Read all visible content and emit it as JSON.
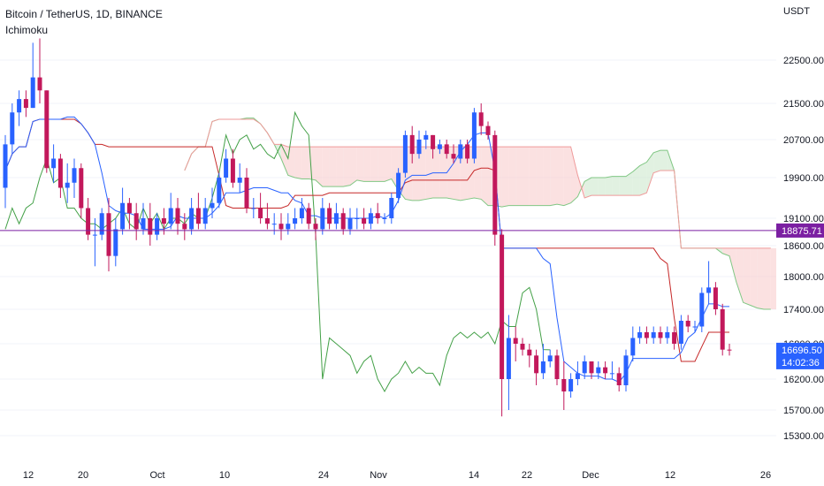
{
  "header": {
    "symbol_line": "Bitcoin / TetherUS, 1D, BINANCE",
    "indicator": "Ichimoku"
  },
  "currency": "USDT",
  "chart_data": {
    "type": "candlestick",
    "title": "Bitcoin / TetherUS, 1D, BINANCE",
    "y_ticks": [
      "22500.00",
      "21500.00",
      "20700.00",
      "19900.00",
      "19100.00",
      "18600.00",
      "18000.00",
      "17400.00",
      "16800.00",
      "16200.00",
      "15700.00",
      "15300.00"
    ],
    "x_ticks": [
      "12",
      "20",
      "Oct",
      "10",
      "24",
      "Nov",
      "14",
      "22",
      "Dec",
      "12",
      "26"
    ],
    "price_lines": [
      {
        "label": "18875.71",
        "color": "#7b1fa2"
      },
      {
        "label": "16696.50",
        "sublabel": "14:02:36",
        "color": "#2962ff"
      }
    ],
    "colors": {
      "up": "#2962ff",
      "down": "#c2185b",
      "conversion": "#2962ff",
      "base": "#c62828",
      "lagging": "#43a047",
      "cloud_bear": "#f8c8c8",
      "cloud_bull": "#c8e6c9"
    },
    "candles": [
      [
        19700,
        20800,
        19300,
        20600
      ],
      [
        20600,
        21500,
        20400,
        21300
      ],
      [
        21300,
        21800,
        21000,
        21600
      ],
      [
        21600,
        21800,
        21200,
        21400
      ],
      [
        21400,
        22900,
        21400,
        22100
      ],
      [
        22100,
        23000,
        21500,
        21800
      ],
      [
        21800,
        21800,
        20000,
        20100
      ],
      [
        20100,
        20600,
        19800,
        20300
      ],
      [
        20300,
        20400,
        19500,
        19700
      ],
      [
        19700,
        20200,
        19400,
        19800
      ],
      [
        19800,
        20300,
        19500,
        20100
      ],
      [
        20100,
        20200,
        19100,
        19300
      ],
      [
        19300,
        19500,
        18700,
        18800
      ],
      [
        18800,
        19100,
        18200,
        18800
      ],
      [
        18800,
        19300,
        18700,
        19200
      ],
      [
        19200,
        19500,
        18100,
        18400
      ],
      [
        18400,
        19100,
        18200,
        18900
      ],
      [
        18900,
        19700,
        18800,
        19400
      ],
      [
        19400,
        19500,
        18900,
        19200
      ],
      [
        19200,
        19400,
        18700,
        18900
      ],
      [
        18900,
        19400,
        18800,
        19100
      ],
      [
        19100,
        19400,
        18600,
        18800
      ],
      [
        18800,
        19200,
        18700,
        19100
      ],
      [
        19100,
        19300,
        18800,
        19000
      ],
      [
        19000,
        19600,
        18900,
        19300
      ],
      [
        19300,
        19500,
        18800,
        19000
      ],
      [
        19000,
        19200,
        18700,
        18900
      ],
      [
        18900,
        19500,
        18800,
        19300
      ],
      [
        19300,
        19600,
        18900,
        19000
      ],
      [
        19000,
        19500,
        18900,
        19300
      ],
      [
        19300,
        19700,
        19100,
        19400
      ],
      [
        19400,
        20000,
        19300,
        19900
      ],
      [
        19900,
        20500,
        19800,
        20300
      ],
      [
        20300,
        20500,
        19700,
        19800
      ],
      [
        19800,
        20200,
        19600,
        19900
      ],
      [
        19900,
        20100,
        19200,
        19300
      ],
      [
        19300,
        19500,
        19100,
        19300
      ],
      [
        19300,
        19600,
        19000,
        19100
      ],
      [
        19100,
        19400,
        18900,
        19000
      ],
      [
        19000,
        19200,
        18800,
        19000
      ],
      [
        19000,
        19200,
        18700,
        18900
      ],
      [
        18900,
        19200,
        18800,
        19000
      ],
      [
        19000,
        19300,
        18900,
        19100
      ],
      [
        19100,
        19500,
        19000,
        19300
      ],
      [
        19300,
        19400,
        18900,
        19000
      ],
      [
        19000,
        19100,
        18700,
        18900
      ],
      [
        18900,
        19500,
        18800,
        19300
      ],
      [
        19300,
        19400,
        18900,
        19000
      ],
      [
        19000,
        19400,
        18900,
        19200
      ],
      [
        19200,
        19300,
        18800,
        18900
      ],
      [
        18900,
        19300,
        18800,
        19100
      ],
      [
        19100,
        19300,
        18900,
        19100
      ],
      [
        19100,
        19300,
        18900,
        19000
      ],
      [
        19000,
        19300,
        18900,
        19200
      ],
      [
        19200,
        19400,
        19000,
        19100
      ],
      [
        19100,
        19200,
        19000,
        19100
      ],
      [
        19100,
        19600,
        19000,
        19500
      ],
      [
        19500,
        20100,
        19400,
        20000
      ],
      [
        20000,
        20900,
        19900,
        20800
      ],
      [
        20800,
        21000,
        20200,
        20400
      ],
      [
        20400,
        20900,
        20300,
        20700
      ],
      [
        20700,
        20900,
        20500,
        20800
      ],
      [
        20800,
        20800,
        20300,
        20500
      ],
      [
        20500,
        20700,
        20400,
        20600
      ],
      [
        20600,
        20700,
        20300,
        20400
      ],
      [
        20400,
        20600,
        20200,
        20300
      ],
      [
        20300,
        20700,
        20200,
        20600
      ],
      [
        20600,
        20700,
        20200,
        20300
      ],
      [
        20300,
        21400,
        20200,
        21300
      ],
      [
        21300,
        21500,
        20800,
        21000
      ],
      [
        21000,
        21100,
        20700,
        20800
      ],
      [
        20800,
        20900,
        18600,
        18800
      ],
      [
        18800,
        18900,
        15600,
        16200
      ],
      [
        16200,
        17300,
        15700,
        16900
      ],
      [
        16900,
        17100,
        16500,
        16800
      ],
      [
        16800,
        16900,
        16600,
        16700
      ],
      [
        16700,
        16800,
        16400,
        16600
      ],
      [
        16600,
        16700,
        16100,
        16300
      ],
      [
        16300,
        16800,
        16200,
        16500
      ],
      [
        16500,
        16700,
        16400,
        16600
      ],
      [
        16600,
        16700,
        16100,
        16200
      ],
      [
        16200,
        16500,
        15700,
        16000
      ],
      [
        16000,
        16300,
        15900,
        16200
      ],
      [
        16200,
        16500,
        16100,
        16300
      ],
      [
        16300,
        16600,
        16200,
        16500
      ],
      [
        16500,
        16500,
        16200,
        16300
      ],
      [
        16300,
        16500,
        16200,
        16400
      ],
      [
        16400,
        16500,
        16200,
        16300
      ],
      [
        16300,
        16500,
        16200,
        16300
      ],
      [
        16300,
        16400,
        16000,
        16100
      ],
      [
        16100,
        16700,
        16000,
        16600
      ],
      [
        16600,
        17100,
        16500,
        16900
      ],
      [
        16900,
        17100,
        16800,
        17000
      ],
      [
        17000,
        17100,
        16800,
        16900
      ],
      [
        16900,
        17100,
        16800,
        17000
      ],
      [
        17000,
        17100,
        16800,
        16900
      ],
      [
        16900,
        17100,
        16800,
        17000
      ],
      [
        17000,
        17100,
        16700,
        16800
      ],
      [
        16800,
        17300,
        16700,
        17200
      ],
      [
        17200,
        17300,
        17000,
        17100
      ],
      [
        17100,
        17200,
        17000,
        17100
      ],
      [
        17100,
        17800,
        17000,
        17700
      ],
      [
        17700,
        18300,
        17500,
        17800
      ],
      [
        17800,
        17900,
        17300,
        17400
      ],
      [
        17400,
        17500,
        16600,
        16700
      ],
      [
        16700,
        16800,
        16600,
        16696.5
      ]
    ]
  }
}
